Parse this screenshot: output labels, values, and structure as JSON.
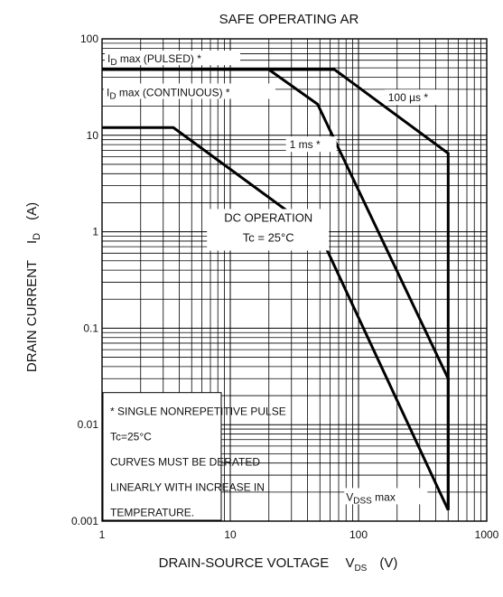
{
  "chart_data": {
    "type": "line",
    "title": "SAFE OPERATING AR",
    "xaxis": {
      "label_main": "DRAIN-SOURCE VOLTAGE",
      "symbol": "V",
      "symbol_sub": "DS",
      "unit": "(V)",
      "scale": "log",
      "range": [
        1,
        1000
      ],
      "ticks": [
        {
          "value": 1,
          "label": "1"
        },
        {
          "value": 10,
          "label": "10"
        },
        {
          "value": 100,
          "label": "100"
        },
        {
          "value": 1000,
          "label": "1000"
        }
      ]
    },
    "yaxis": {
      "label_main": "DRAIN CURRENT",
      "symbol": "I",
      "symbol_sub": "D",
      "unit": "(A)",
      "scale": "log",
      "range": [
        0.001,
        100
      ],
      "ticks": [
        {
          "value": 100,
          "label": "100"
        },
        {
          "value": 10,
          "label": "10"
        },
        {
          "value": 1,
          "label": "1"
        },
        {
          "value": 0.1,
          "label": "0.1"
        },
        {
          "value": 0.01,
          "label": "0.01"
        },
        {
          "value": 0.001,
          "label": "0.001"
        }
      ]
    },
    "grid": true,
    "series": [
      {
        "name": "100 µs *",
        "points": [
          [
            1,
            48
          ],
          [
            65,
            48
          ],
          [
            500,
            6.5
          ],
          [
            500,
            0.0013
          ]
        ]
      },
      {
        "name": "1 ms *",
        "points": [
          [
            1,
            48
          ],
          [
            20,
            48
          ],
          [
            48,
            21
          ],
          [
            500,
            0.03
          ],
          [
            500,
            0.0013
          ]
        ]
      },
      {
        "name": "DC OPERATION",
        "points": [
          [
            1,
            12
          ],
          [
            3.6,
            12
          ],
          [
            50,
            0.93
          ],
          [
            500,
            0.0013
          ]
        ]
      }
    ],
    "annotations": {
      "id_pulsed": {
        "pre": "I",
        "sub": "D",
        "post": " max (PULSED) *"
      },
      "id_continuous": {
        "pre": "I",
        "sub": "D",
        "post": " max (CONTINUOUS) *"
      },
      "label_100us": "100 µs *",
      "label_1ms": "1 ms *",
      "dc_line1": "DC OPERATION",
      "dc_line2": "Tc = 25°C",
      "vdss": {
        "pre": "V",
        "sub": "DSS",
        "post": " max"
      },
      "note_lines": [
        "* SINGLE NONREPETITIVE PULSE",
        "Tc=25°C",
        "CURVES MUST BE DERATED",
        "LINEARLY WITH INCREASE IN",
        "TEMPERATURE."
      ]
    }
  }
}
